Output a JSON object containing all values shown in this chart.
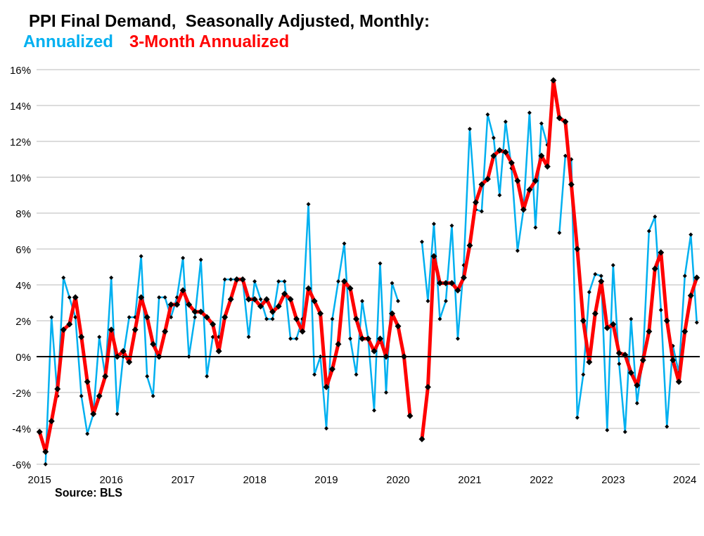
{
  "chart_data": {
    "type": "line",
    "title": "PPI Final Demand,  Seasonally Adjusted, Monthly:",
    "categories": [
      "2015",
      null,
      null,
      null,
      null,
      null,
      null,
      null,
      null,
      null,
      null,
      null,
      "2016",
      null,
      null,
      null,
      null,
      null,
      null,
      null,
      null,
      null,
      null,
      null,
      "2017",
      null,
      null,
      null,
      null,
      null,
      null,
      null,
      null,
      null,
      null,
      null,
      "2018",
      null,
      null,
      null,
      null,
      null,
      null,
      null,
      null,
      null,
      null,
      null,
      "2019",
      null,
      null,
      null,
      null,
      null,
      null,
      null,
      null,
      null,
      null,
      null,
      "2020",
      null,
      null,
      null,
      null,
      null,
      null,
      null,
      null,
      null,
      null,
      null,
      "2021",
      null,
      null,
      null,
      null,
      null,
      null,
      null,
      null,
      null,
      null,
      null,
      "2022",
      null,
      null,
      null,
      null,
      null,
      null,
      null,
      null,
      null,
      null,
      null,
      "2023",
      null,
      null,
      null,
      null,
      null,
      null,
      null,
      null,
      null,
      null,
      null,
      "2024",
      null,
      null
    ],
    "series": [
      {
        "name": "Annualized",
        "color": "#00b0f0",
        "values": [
          null,
          -6.0,
          2.2,
          -2.2,
          4.4,
          3.3,
          2.2,
          -2.2,
          -4.3,
          -3.2,
          1.1,
          -1.1,
          4.4,
          -3.2,
          0.0,
          2.2,
          2.2,
          5.6,
          -1.1,
          -2.2,
          3.3,
          3.3,
          2.2,
          3.3,
          5.5,
          0.0,
          2.2,
          5.4,
          -1.1,
          1.1,
          1.1,
          4.3,
          4.3,
          4.3,
          4.3,
          1.1,
          4.2,
          3.2,
          2.1,
          2.1,
          4.2,
          4.2,
          1.0,
          1.0,
          2.1,
          8.5,
          -1.0,
          0.0,
          -4.0,
          2.1,
          4.2,
          6.3,
          1.0,
          -1.0,
          3.1,
          1.0,
          -3.0,
          5.2,
          -2.0,
          4.1,
          3.1,
          null,
          null,
          null,
          6.4,
          3.1,
          7.4,
          2.1,
          3.1,
          7.3,
          1.0,
          5.1,
          12.7,
          8.2,
          8.1,
          13.5,
          12.2,
          9.0,
          13.1,
          10.5,
          5.9,
          8.2,
          13.6,
          7.2,
          13.0,
          11.8,
          null,
          6.9,
          11.2,
          11.0,
          -3.4,
          -1.0,
          3.6,
          4.6,
          4.5,
          -4.1,
          5.1,
          -0.4,
          -4.2,
          2.1,
          -2.6,
          0.0,
          7.0,
          7.8,
          2.6,
          -3.9,
          0.6,
          -0.9,
          4.5,
          6.8,
          1.9
        ]
      },
      {
        "name": "3-Month Annualized",
        "color": "#ff0000",
        "values": [
          -4.2,
          -5.3,
          -3.6,
          -1.8,
          1.5,
          1.8,
          3.3,
          1.1,
          -1.4,
          -3.2,
          -2.2,
          -1.1,
          1.5,
          0.0,
          0.3,
          -0.3,
          1.5,
          3.3,
          2.2,
          0.7,
          0.0,
          1.4,
          2.9,
          2.9,
          3.7,
          2.9,
          2.5,
          2.5,
          2.2,
          1.8,
          0.3,
          2.2,
          3.2,
          4.3,
          4.3,
          3.2,
          3.2,
          2.8,
          3.2,
          2.5,
          2.8,
          3.5,
          3.2,
          2.1,
          1.4,
          3.8,
          3.1,
          2.4,
          -1.7,
          -0.7,
          0.7,
          4.2,
          3.8,
          2.1,
          1.0,
          1.0,
          0.3,
          1.0,
          0.0,
          2.4,
          1.7,
          0.0,
          -3.3,
          null,
          -4.6,
          -1.7,
          5.6,
          4.1,
          4.1,
          4.1,
          3.7,
          4.4,
          6.2,
          8.6,
          9.6,
          9.9,
          11.2,
          11.5,
          11.4,
          10.8,
          9.8,
          8.2,
          9.3,
          9.8,
          11.2,
          10.6,
          15.4,
          13.3,
          13.1,
          9.6,
          6.0,
          2.0,
          -0.3,
          2.4,
          4.2,
          1.6,
          1.8,
          0.2,
          0.1,
          -0.9,
          -1.6,
          -0.2,
          1.4,
          4.9,
          5.8,
          2.0,
          -0.2,
          -1.4,
          1.4,
          3.4,
          4.4
        ]
      }
    ],
    "ylim": [
      -6,
      16
    ],
    "yticks": [
      {
        "value": -6,
        "label": "-6%"
      },
      {
        "value": -4,
        "label": "-4%"
      },
      {
        "value": -2,
        "label": "-2%"
      },
      {
        "value": 0,
        "label": "0%"
      },
      {
        "value": 2,
        "label": "2%"
      },
      {
        "value": 4,
        "label": "4%"
      },
      {
        "value": 6,
        "label": "6%"
      },
      {
        "value": 8,
        "label": "8%"
      },
      {
        "value": 10,
        "label": "10%"
      },
      {
        "value": 12,
        "label": "12%"
      },
      {
        "value": 14,
        "label": "14%"
      },
      {
        "value": 16,
        "label": "16%"
      }
    ],
    "ref_lines": [
      {
        "axis": "y",
        "value": 0,
        "color": "#000000"
      }
    ],
    "grid": "y",
    "legend": "top left",
    "marker": "diamond",
    "line_style": "solid",
    "annotations": [
      "Source: BLS"
    ]
  }
}
